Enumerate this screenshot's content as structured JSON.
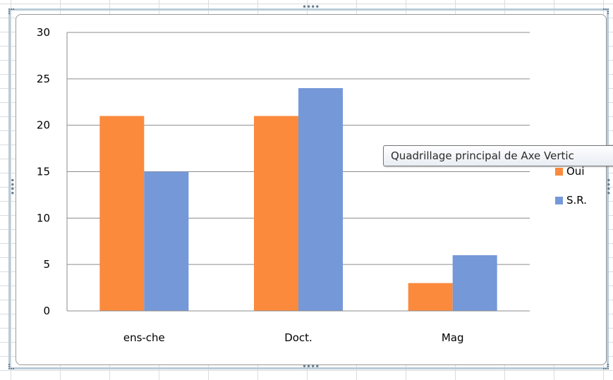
{
  "colors": {
    "oui": "#fb8a3c",
    "sr": "#7598d8",
    "gridline": "#8c8c8c",
    "axis": "#8c8c8c"
  },
  "tooltip": {
    "text": "Quadrillage principal de Axe Vertic"
  },
  "chart_data": {
    "type": "bar",
    "categories": [
      "ens-che",
      "Doct.",
      "Mag"
    ],
    "series": [
      {
        "name": "Oui",
        "values": [
          21,
          21,
          3
        ]
      },
      {
        "name": "S.R.",
        "values": [
          15,
          24,
          6
        ]
      }
    ],
    "title": "",
    "xlabel": "",
    "ylabel": "",
    "ylim": [
      0,
      30
    ],
    "yticks": [
      "0",
      "5",
      "10",
      "15",
      "20",
      "25",
      "30"
    ],
    "grid": true,
    "legend": "right"
  }
}
